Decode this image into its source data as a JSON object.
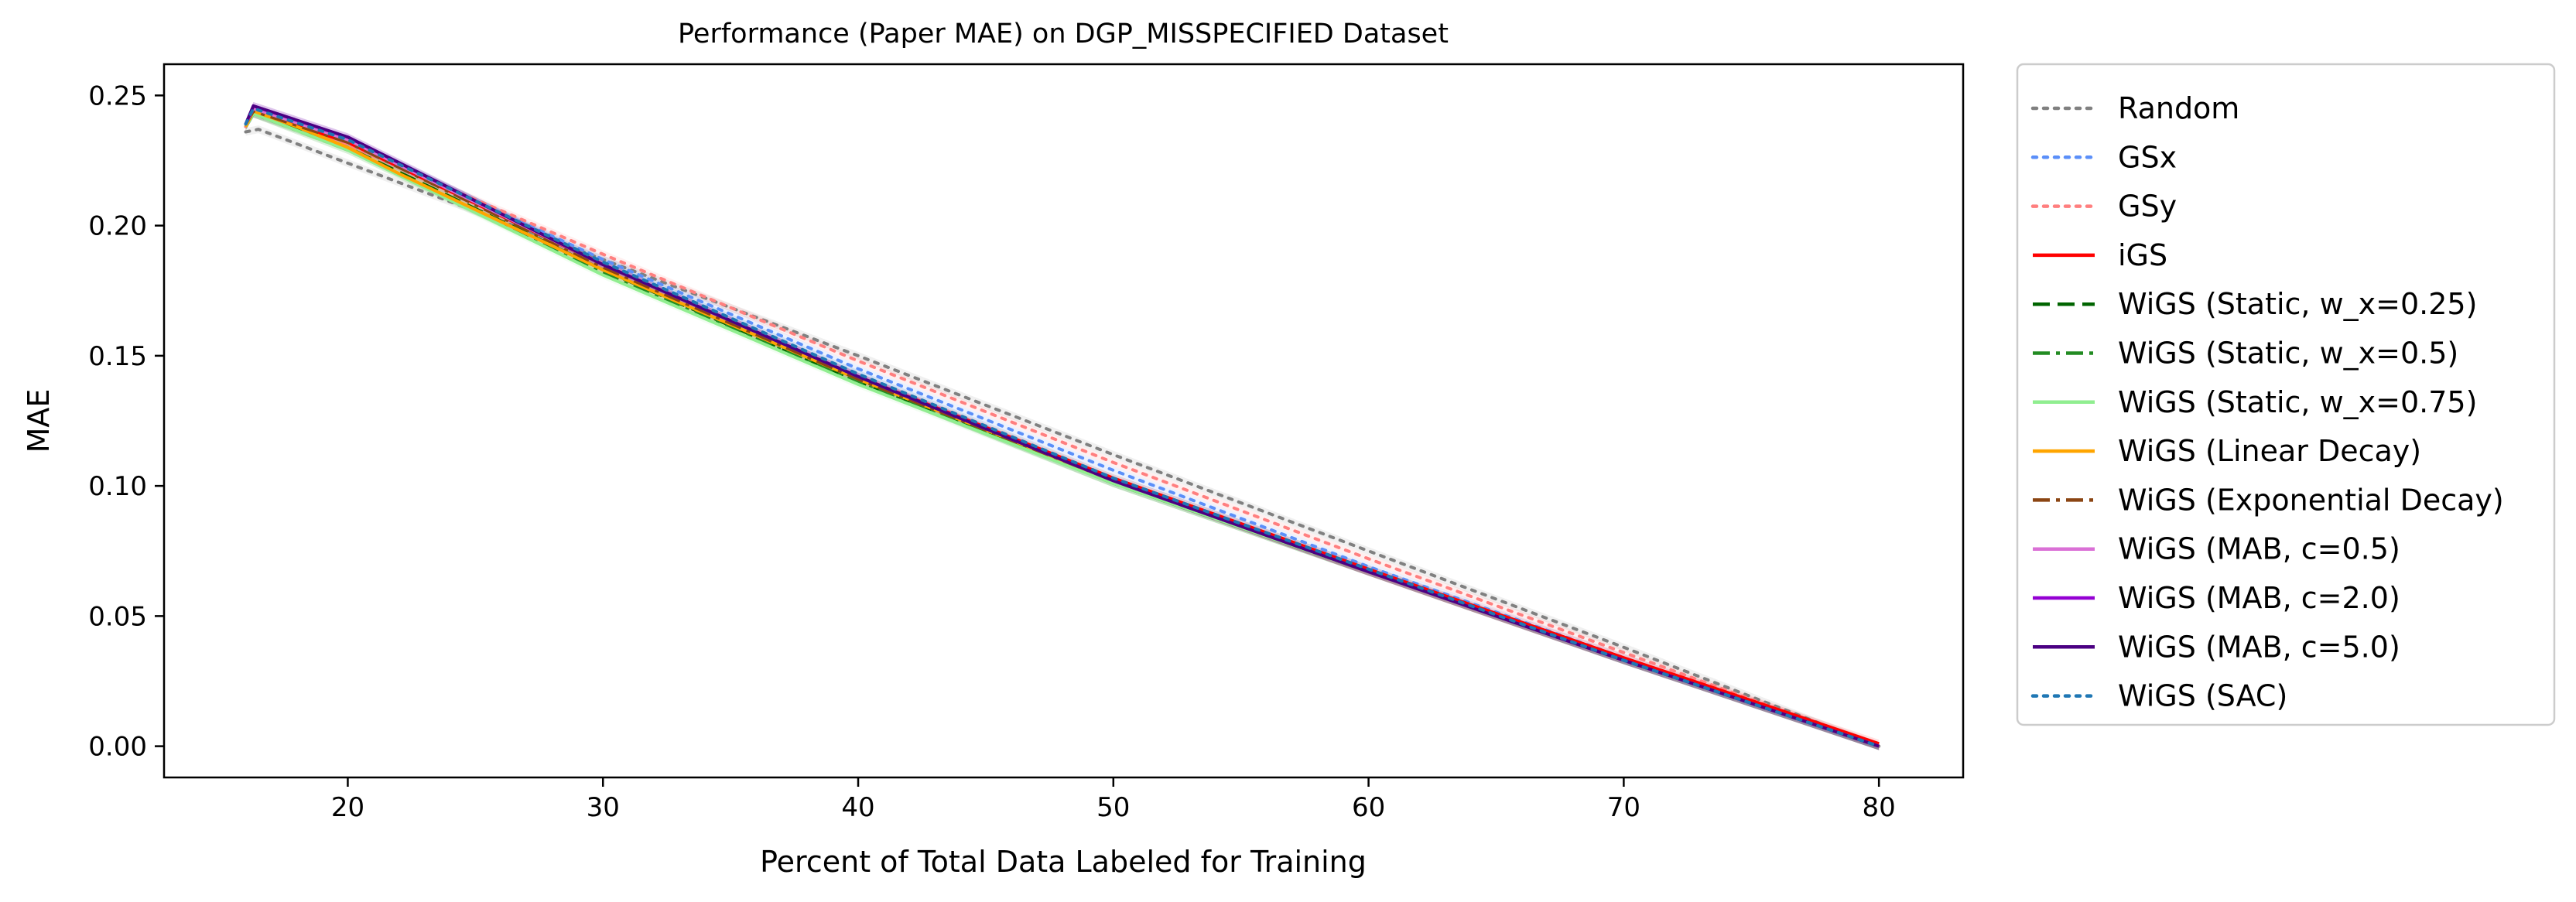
{
  "chart_data": {
    "type": "line",
    "title": "Performance (Paper MAE) on DGP_MISSPECIFIED Dataset",
    "xlabel": "Percent of Total Data Labeled for Training",
    "ylabel": "MAE",
    "xlim": [
      12.8,
      83.3
    ],
    "ylim": [
      -0.012,
      0.262
    ],
    "xticks": [
      20,
      30,
      40,
      50,
      60,
      70,
      80
    ],
    "yticks": [
      0.0,
      0.05,
      0.1,
      0.15,
      0.2,
      0.25
    ],
    "ytick_labels": [
      "0.00",
      "0.05",
      "0.10",
      "0.15",
      "0.20",
      "0.25"
    ],
    "grid": false,
    "legend_position": "outside-right",
    "series": [
      {
        "name": "Random",
        "color": "#808080",
        "style": "dotted",
        "x": [
          16,
          16.5,
          20,
          30,
          40,
          50,
          60,
          70,
          80
        ],
        "y": [
          0.236,
          0.237,
          0.224,
          0.187,
          0.15,
          0.112,
          0.075,
          0.038,
          0.0
        ]
      },
      {
        "name": "GSx",
        "color": "#5b8ff9",
        "style": "dotted",
        "x": [
          16,
          16.3,
          20,
          30,
          40,
          50,
          60,
          70,
          80
        ],
        "y": [
          0.238,
          0.243,
          0.232,
          0.187,
          0.145,
          0.106,
          0.069,
          0.034,
          0.0
        ]
      },
      {
        "name": "GSy",
        "color": "#ff7f7f",
        "style": "dotted",
        "x": [
          16,
          16.3,
          20,
          30,
          40,
          50,
          60,
          70,
          80
        ],
        "y": [
          0.238,
          0.243,
          0.231,
          0.189,
          0.148,
          0.109,
          0.072,
          0.036,
          0.0
        ]
      },
      {
        "name": "iGS",
        "color": "#ff0000",
        "style": "solid",
        "x": [
          16,
          16.3,
          20,
          30,
          40,
          50,
          60,
          70,
          77,
          80
        ],
        "y": [
          0.239,
          0.244,
          0.232,
          0.185,
          0.142,
          0.103,
          0.068,
          0.034,
          0.011,
          0.001
        ]
      },
      {
        "name": "WiGS (Static, w_x=0.25)",
        "color": "#006400",
        "style": "dashed",
        "x": [
          16,
          16.3,
          20,
          30,
          40,
          50,
          60,
          70,
          80
        ],
        "y": [
          0.238,
          0.243,
          0.23,
          0.183,
          0.14,
          0.101,
          0.067,
          0.033,
          0.0
        ]
      },
      {
        "name": "WiGS (Static, w_x=0.5)",
        "color": "#228b22",
        "style": "dashdot",
        "x": [
          16,
          16.3,
          20,
          30,
          40,
          50,
          60,
          70,
          80
        ],
        "y": [
          0.238,
          0.243,
          0.229,
          0.182,
          0.14,
          0.101,
          0.067,
          0.033,
          0.0
        ]
      },
      {
        "name": "WiGS (Static, w_x=0.75)",
        "color": "#90ee90",
        "style": "solid",
        "x": [
          16,
          16.3,
          20,
          30,
          40,
          50,
          60,
          70,
          80
        ],
        "y": [
          0.238,
          0.243,
          0.229,
          0.181,
          0.139,
          0.101,
          0.067,
          0.033,
          0.0
        ]
      },
      {
        "name": "WiGS (Linear Decay)",
        "color": "#ffa500",
        "style": "solid",
        "x": [
          16,
          16.3,
          18,
          20,
          22,
          30,
          40,
          50,
          60,
          70,
          80
        ],
        "y": [
          0.238,
          0.244,
          0.238,
          0.23,
          0.22,
          0.183,
          0.141,
          0.102,
          0.067,
          0.033,
          0.0
        ]
      },
      {
        "name": "WiGS (Exponential Decay)",
        "color": "#8b4513",
        "style": "dashdot",
        "x": [
          16,
          16.3,
          20,
          30,
          40,
          50,
          60,
          70,
          80
        ],
        "y": [
          0.239,
          0.244,
          0.232,
          0.184,
          0.141,
          0.102,
          0.067,
          0.033,
          0.0
        ]
      },
      {
        "name": "WiGS (MAB, c=0.5)",
        "color": "#da70d6",
        "style": "solid",
        "x": [
          16,
          16.3,
          20,
          30,
          40,
          50,
          60,
          70,
          80
        ],
        "y": [
          0.239,
          0.245,
          0.233,
          0.185,
          0.142,
          0.102,
          0.067,
          0.033,
          0.0
        ]
      },
      {
        "name": "WiGS (MAB, c=2.0)",
        "color": "#9400d3",
        "style": "solid",
        "x": [
          16,
          16.3,
          20,
          30,
          40,
          50,
          60,
          70,
          80
        ],
        "y": [
          0.239,
          0.246,
          0.234,
          0.185,
          0.142,
          0.102,
          0.067,
          0.033,
          0.0
        ]
      },
      {
        "name": "WiGS (MAB, c=5.0)",
        "color": "#4b0082",
        "style": "solid",
        "x": [
          16,
          16.3,
          20,
          30,
          40,
          50,
          60,
          70,
          80
        ],
        "y": [
          0.239,
          0.246,
          0.234,
          0.185,
          0.142,
          0.102,
          0.067,
          0.033,
          0.0
        ]
      },
      {
        "name": "WiGS (SAC)",
        "color": "#1f77b4",
        "style": "dotted",
        "x": [
          16,
          16.3,
          20,
          30,
          40,
          50,
          60,
          70,
          80
        ],
        "y": [
          0.239,
          0.245,
          0.233,
          0.186,
          0.143,
          0.103,
          0.068,
          0.033,
          0.0
        ]
      }
    ]
  }
}
